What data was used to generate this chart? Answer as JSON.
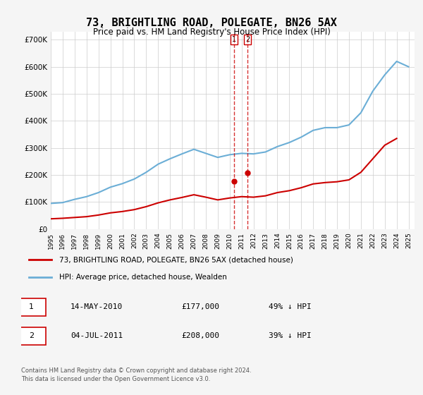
{
  "title": "73, BRIGHTLING ROAD, POLEGATE, BN26 5AX",
  "subtitle": "Price paid vs. HM Land Registry's House Price Index (HPI)",
  "ylabel_ticks": [
    "£0",
    "£100K",
    "£200K",
    "£300K",
    "£400K",
    "£500K",
    "£600K",
    "£700K"
  ],
  "ytick_values": [
    0,
    100000,
    200000,
    300000,
    400000,
    500000,
    600000,
    700000
  ],
  "ylim": [
    0,
    730000
  ],
  "xlim_start": 1995.0,
  "xlim_end": 2025.5,
  "background_color": "#f5f5f5",
  "plot_bg_color": "#ffffff",
  "hpi_color": "#6baed6",
  "price_color": "#cc0000",
  "transaction1_date": 2010.37,
  "transaction2_date": 2011.5,
  "transaction1_price": 177000,
  "transaction2_price": 208000,
  "legend_label1": "73, BRIGHTLING ROAD, POLEGATE, BN26 5AX (detached house)",
  "legend_label2": "HPI: Average price, detached house, Wealden",
  "table_row1": [
    "1",
    "14-MAY-2010",
    "£177,000",
    "49% ↓ HPI"
  ],
  "table_row2": [
    "2",
    "04-JUL-2011",
    "£208,000",
    "39% ↓ HPI"
  ],
  "footer": "Contains HM Land Registry data © Crown copyright and database right 2024.\nThis data is licensed under the Open Government Licence v3.0.",
  "hpi_years": [
    1995,
    1996,
    1997,
    1998,
    1999,
    2000,
    2001,
    2002,
    2003,
    2004,
    2005,
    2006,
    2007,
    2008,
    2009,
    2010,
    2011,
    2012,
    2013,
    2014,
    2015,
    2016,
    2017,
    2018,
    2019,
    2020,
    2021,
    2022,
    2023,
    2024,
    2025
  ],
  "hpi_values": [
    95000,
    98000,
    110000,
    120000,
    135000,
    155000,
    168000,
    185000,
    210000,
    240000,
    260000,
    278000,
    295000,
    280000,
    265000,
    275000,
    280000,
    278000,
    285000,
    305000,
    320000,
    340000,
    365000,
    375000,
    375000,
    385000,
    430000,
    510000,
    570000,
    620000,
    600000
  ],
  "price_years": [
    1995,
    1996,
    1997,
    1998,
    1999,
    2000,
    2001,
    2002,
    2003,
    2004,
    2005,
    2006,
    2007,
    2008,
    2009,
    2010,
    2011,
    2012,
    2013,
    2014,
    2015,
    2016,
    2017,
    2018,
    2019,
    2020,
    2021,
    2022,
    2023,
    2024
  ],
  "price_values": [
    38000,
    40000,
    43000,
    46000,
    52000,
    60000,
    65000,
    72000,
    83000,
    97000,
    108000,
    117000,
    127000,
    118000,
    108000,
    115000,
    120000,
    118000,
    123000,
    135000,
    142000,
    153000,
    167000,
    172000,
    175000,
    182000,
    210000,
    260000,
    310000,
    335000
  ]
}
